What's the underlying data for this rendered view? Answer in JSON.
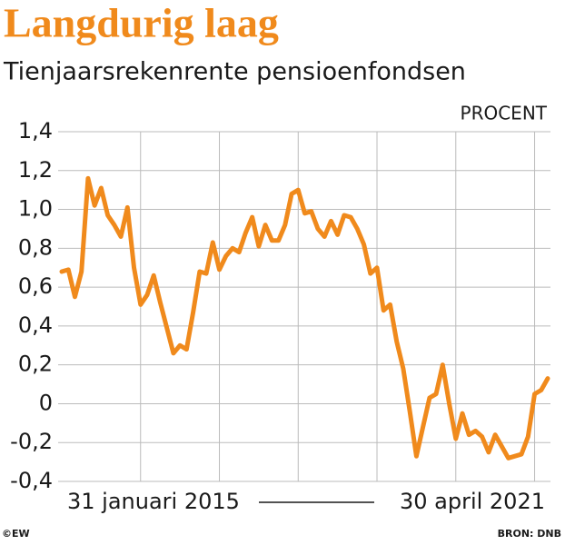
{
  "chart_data": {
    "type": "line",
    "title": "Langdurig laag",
    "subtitle": "Tienjaarsrekenrente pensioenfondsen",
    "y_unit": "PROCENT",
    "categories": [
      "31 januari 2015",
      null,
      null,
      null,
      null,
      null,
      null,
      null,
      null,
      null,
      null,
      null,
      null,
      null,
      null,
      null,
      null,
      null,
      null,
      null,
      null,
      null,
      null,
      null,
      null,
      null,
      null,
      null,
      null,
      null,
      null,
      null,
      null,
      null,
      null,
      null,
      null,
      null,
      null,
      null,
      null,
      null,
      null,
      null,
      null,
      null,
      null,
      null,
      null,
      null,
      null,
      null,
      null,
      null,
      null,
      null,
      null,
      null,
      null,
      null,
      null,
      null,
      null,
      null,
      null,
      null,
      null,
      null,
      null,
      null,
      null,
      null,
      null,
      null,
      "30 april 2021"
    ],
    "values": [
      0.68,
      0.69,
      0.55,
      0.68,
      1.16,
      1.02,
      1.11,
      0.97,
      0.92,
      0.86,
      1.01,
      0.7,
      0.51,
      0.56,
      0.66,
      0.52,
      0.39,
      0.26,
      0.3,
      0.28,
      0.47,
      0.68,
      0.67,
      0.83,
      0.69,
      0.76,
      0.8,
      0.78,
      0.88,
      0.96,
      0.81,
      0.92,
      0.84,
      0.84,
      0.92,
      1.08,
      1.1,
      0.98,
      0.99,
      0.9,
      0.86,
      0.94,
      0.87,
      0.97,
      0.96,
      0.9,
      0.82,
      0.67,
      0.7,
      0.48,
      0.51,
      0.32,
      0.18,
      -0.04,
      -0.27,
      -0.12,
      0.03,
      0.05,
      0.2,
      0,
      -0.18,
      -0.05,
      -0.16,
      -0.14,
      -0.17,
      -0.25,
      -0.16,
      -0.22,
      -0.28,
      -0.27,
      -0.26,
      -0.17,
      0.05,
      0.07,
      0.13
    ],
    "color": "#f08a1c",
    "ylim": [
      -0.4,
      1.4
    ],
    "yticks": [
      {
        "value": -0.4,
        "label": "-0,4"
      },
      {
        "value": -0.2,
        "label": "-0,2"
      },
      0,
      {
        "value": 0.2,
        "label": "0,2"
      },
      {
        "value": 0.4,
        "label": "0,4"
      },
      {
        "value": 0.6,
        "label": "0,6"
      },
      {
        "value": 0.8,
        "label": "0,8"
      },
      {
        "value": 1.0,
        "label": "1,0"
      },
      {
        "value": 1.2,
        "label": "1,2"
      },
      {
        "value": 1.4,
        "label": "1,4"
      }
    ],
    "grid": true,
    "credit": "©EW",
    "source": "BRON: DNB"
  }
}
